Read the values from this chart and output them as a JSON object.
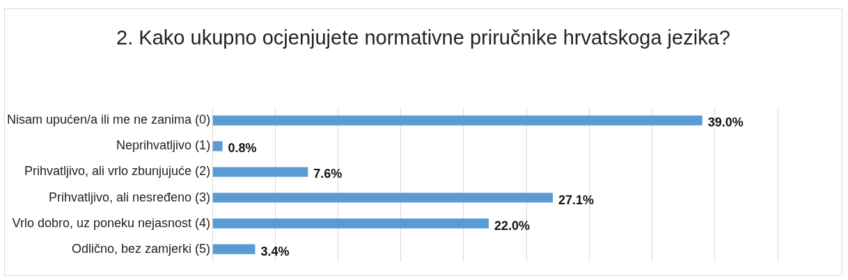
{
  "chart_data": {
    "type": "bar",
    "orientation": "horizontal",
    "title": "2. Kako ukupno ocjenjujete normativne priručnike hrvatskoga jezika?",
    "categories": [
      "Nisam upućen/a ili me ne zanima (0)",
      "Neprihvatljivo (1)",
      "Prihvatljivo, ali vrlo zbunjujuće (2)",
      "Prihvatljivo, ali nesređeno (3)",
      "Vrlo dobro, uz poneku nejasnost (4)",
      "Odlično, bez zamjerki (5)"
    ],
    "values": [
      39.0,
      0.8,
      7.6,
      27.1,
      22.0,
      3.4
    ],
    "value_labels": [
      "39.0%",
      "0.8%",
      "7.6%",
      "27.1%",
      "22.0%",
      "3.4%"
    ],
    "color": "#5b9bd5",
    "xlim": [
      0,
      45
    ],
    "xticks": [
      {
        "value": 0,
        "label": null
      },
      {
        "value": 5,
        "label": null
      },
      {
        "value": 10,
        "label": null
      },
      {
        "value": 15,
        "label": null
      },
      {
        "value": 20,
        "label": null
      },
      {
        "value": 25,
        "label": null
      },
      {
        "value": 30,
        "label": null
      },
      {
        "value": 35,
        "label": null
      },
      {
        "value": 40,
        "label": null
      },
      {
        "value": 45,
        "label": null
      }
    ],
    "grid": "x",
    "tick_labels": "y",
    "legend": false
  }
}
